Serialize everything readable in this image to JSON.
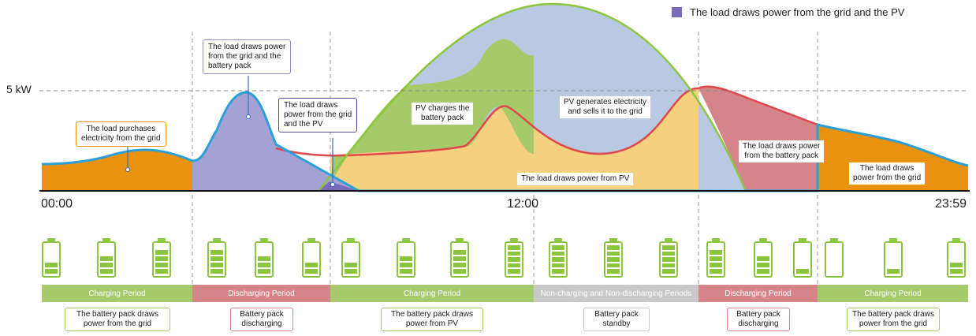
{
  "legend": {
    "label": "The load draws power from the grid and the PV",
    "color": "#7a6bb8"
  },
  "five_kw_label": "5 kW",
  "time_labels": {
    "start": "00:00",
    "noon": "12:00",
    "end": "23:59"
  },
  "colors": {
    "grid_load": "#e8920f",
    "battery_load": "#a4a2d4",
    "pv_grid_load": "#7a6bb8",
    "pv_charge": "#a6ca6a",
    "pv_load": "#f5d07e",
    "pv_sell": "#b8c9e1",
    "battery_discharge_load": "#d5858a",
    "load_line": "#2a9fd8",
    "pv_line": "#8cc63f",
    "battery_line": "#e0474c",
    "charging": "#a6ca6a",
    "discharging": "#d5858a",
    "standby": "#c9c9c9"
  },
  "callouts": {
    "grid_purchase": "The load purchases\nelectricity from the grid",
    "grid_battery": "The load draws power\nfrom the grid and the\nbattery pack",
    "grid_pv": "The load draws\npower from the grid\nand the PV",
    "pv_charges": "PV charges the\nbattery pack",
    "pv_sells": "PV generates electricity\nand sells it to the grid",
    "pv_load": "The load draws power from PV",
    "battery_load": "The load draws power\nfrom the battery pack",
    "grid_load": "The load draws\npower from the grid"
  },
  "periods": [
    {
      "label": "Charging Period",
      "type": "charging"
    },
    {
      "label": "Discharging Period",
      "type": "discharging"
    },
    {
      "label": "Charging Period",
      "type": "charging"
    },
    {
      "label": "Non-charging and Non-discharging Periods",
      "type": "standby"
    },
    {
      "label": "Discharging Period",
      "type": "discharging"
    },
    {
      "label": "Charging Period",
      "type": "charging"
    }
  ],
  "period_notes": [
    {
      "text": "The battery pack draws\npower from the grid",
      "type": "charging"
    },
    {
      "text": "Battery pack\ndischarging",
      "type": "discharging"
    },
    {
      "text": "The battery pack draws\npower from PV",
      "type": "charging"
    },
    {
      "text": "Battery pack\nstandby",
      "type": "standby"
    },
    {
      "text": "Battery pack\ndischarging",
      "type": "discharging"
    },
    {
      "text": "The battery pack draws\npower from the grid",
      "type": "charging"
    }
  ],
  "battery_levels": [
    2,
    3,
    4,
    4,
    3,
    2,
    2,
    3,
    4,
    5,
    5,
    5,
    5,
    4,
    3,
    1,
    0,
    1,
    2,
    3
  ]
}
